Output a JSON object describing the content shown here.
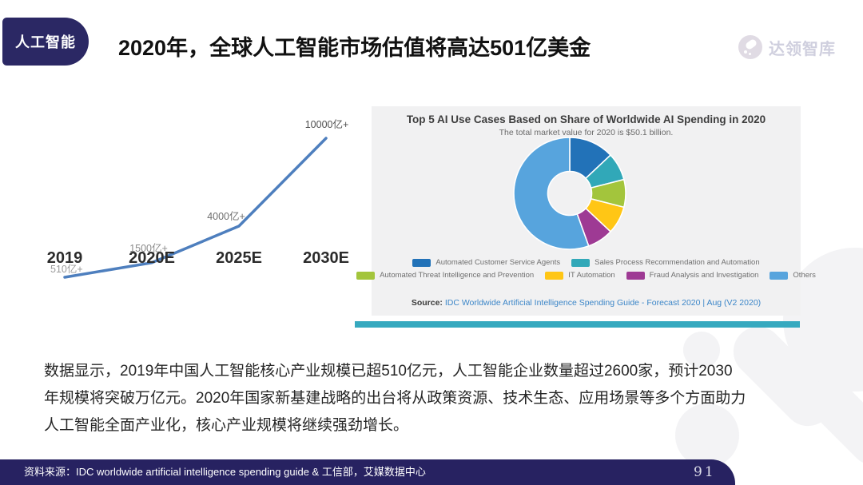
{
  "page": {
    "badge": "人工智能",
    "title": "2020年，全球人工智能市场估值将高达501亿美金",
    "logo_text": "达领智库",
    "body_paragraph": "数据显示，2019年中国人工智能核心产业规模已超510亿元，人工智能企业数量超过2600家，预计2030年规模将突破万亿元。2020年国家新基建战略的出台将从政策资源、技术生态、应用场景等多个方面助力人工智能全面产业化，核心产业规模将继续强劲增长。",
    "footer_source": "资料来源：IDC worldwide artificial intelligence spending guide & 工信部，艾媒数据中心",
    "page_number": "91"
  },
  "chart_data": [
    {
      "type": "line",
      "title": "",
      "categories": [
        "2019",
        "2020E",
        "2025E",
        "2030E"
      ],
      "values": [
        510,
        1500,
        4000,
        10000
      ],
      "value_labels": [
        "510亿+",
        "1500亿+",
        "4000亿+",
        "10000亿+"
      ],
      "unit": "亿元 (RMB 100 million)",
      "line_color": "#4e7fbe",
      "category_label_color": "#2b2b2b",
      "value_label_colors": [
        "#9b9b9b",
        "#8a8a8a",
        "#6e6e6e",
        "#4f4f4f"
      ],
      "grid": false,
      "axes_visible": false
    },
    {
      "type": "pie",
      "subtype": "donut",
      "title": "Top 5 AI Use Cases Based on Share of Worldwide AI Spending in 2020",
      "subtitle": "The total market value for 2020 is $50.1 billion.",
      "total_market_value_billion_usd": 50.1,
      "slices": [
        {
          "label": "Automated Customer Service Agents",
          "value": 13,
          "color": "#2272b8"
        },
        {
          "label": "Sales Process Recommendation and Automation",
          "value": 8,
          "color": "#31a8b8"
        },
        {
          "label": "Automated Threat Intelligence and Prevention",
          "value": 8,
          "color": "#a3c53c"
        },
        {
          "label": "IT Automation",
          "value": 8,
          "color": "#ffc615"
        },
        {
          "label": "Fraud Analysis and Investigation",
          "value": 7.5,
          "color": "#9e3a94"
        },
        {
          "label": "Others",
          "value": 55.5,
          "color": "#57a4dd"
        }
      ],
      "legend_position": "bottom",
      "legend_rows": [
        [
          0,
          1
        ],
        [
          2,
          3,
          4,
          5
        ]
      ],
      "source_label": "Source:",
      "source_text": "IDC Worldwide Artificial Intelligence Spending Guide - Forecast 2020 | Aug (V2 2020)"
    }
  ],
  "accents": {
    "navy": "#2b2864",
    "teal_bar": "#36a9bf",
    "panel_bg": "#f1f1f2"
  }
}
